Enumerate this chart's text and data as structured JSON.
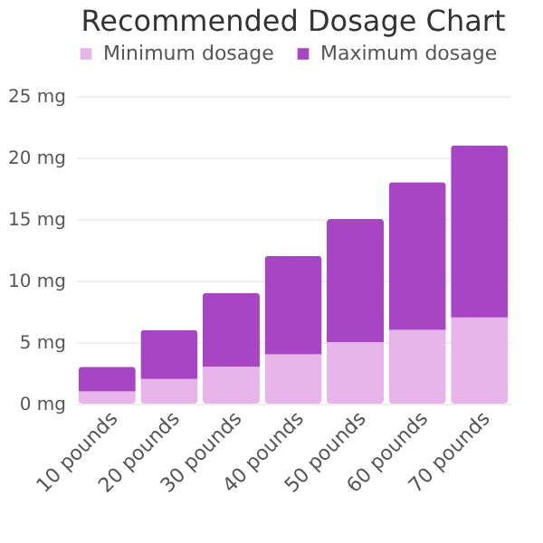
{
  "chart_data": {
    "type": "bar",
    "title": "Recommended Dosage Chart",
    "categories": [
      "10 pounds",
      "20 pounds",
      "30 pounds",
      "40 pounds",
      "50 pounds",
      "60 pounds",
      "70 pounds"
    ],
    "series": [
      {
        "name": "Minimum dosage",
        "color": "#e8b5ea",
        "values": [
          1,
          2,
          3,
          4,
          5,
          6,
          7
        ]
      },
      {
        "name": "Maximum dosage",
        "color": "#a845c4",
        "values": [
          2,
          4,
          6,
          8,
          10,
          12,
          14
        ]
      }
    ],
    "stacked": true,
    "ylim": [
      0,
      25
    ],
    "yticks": [
      {
        "value": 0,
        "label": "0 mg"
      },
      {
        "value": 5,
        "label": "5 mg"
      },
      {
        "value": 10,
        "label": "10 mg"
      },
      {
        "value": 15,
        "label": "15 mg"
      },
      {
        "value": 20,
        "label": "20 mg"
      },
      {
        "value": 25,
        "label": "25 mg"
      }
    ],
    "grid": "y",
    "legend": "top"
  }
}
